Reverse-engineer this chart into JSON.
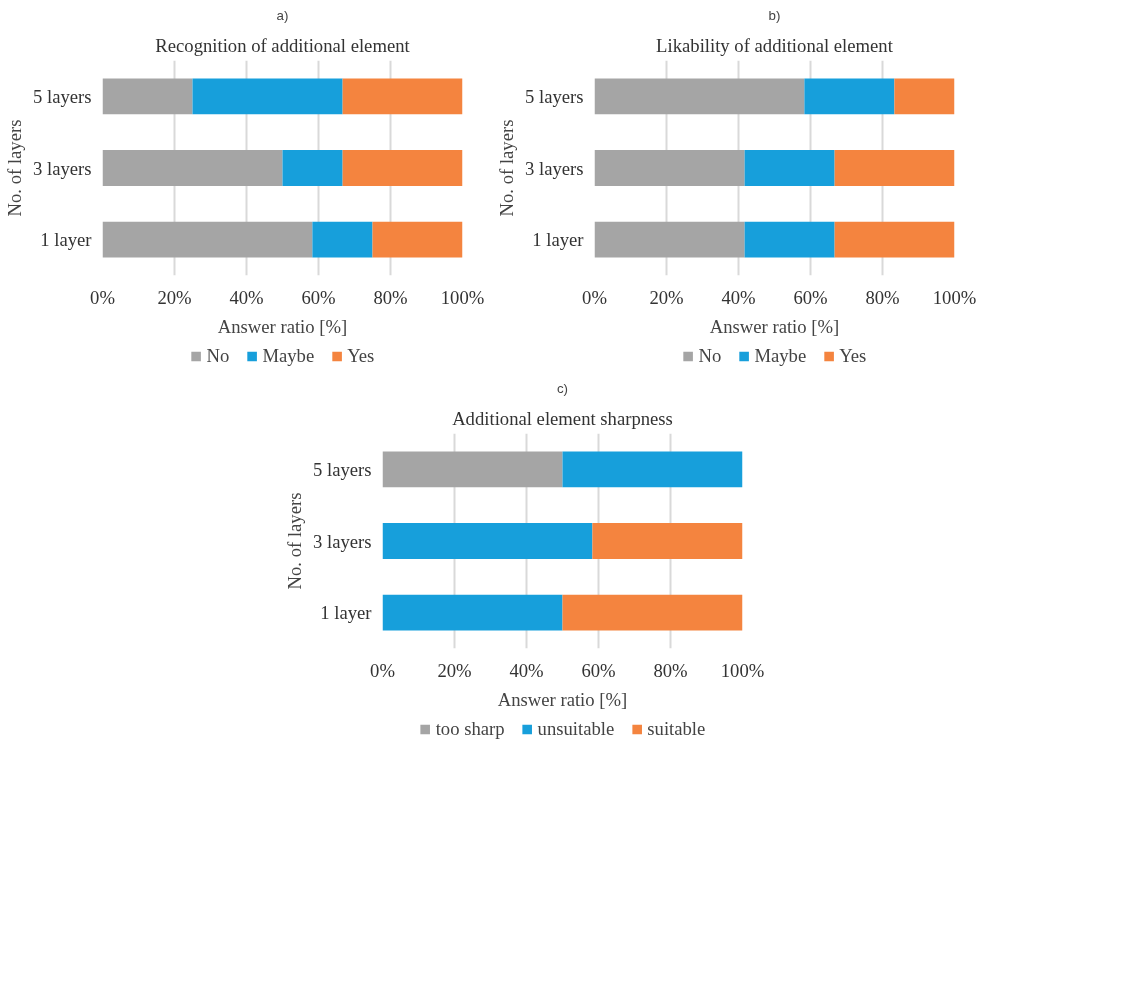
{
  "chart_data": [
    {
      "type": "bar",
      "orientation": "horizontal",
      "stacked": true,
      "title": "Recognition of additional element",
      "annotations": [
        "a)"
      ],
      "xlabel": "Answer ratio [%]",
      "ylabel": "No. of layers",
      "categories": [
        "5 layers",
        "3 layers",
        "1 layer"
      ],
      "series": [
        {
          "name": "No",
          "color": "#a5a5a5",
          "values": [
            25,
            50,
            58.3
          ]
        },
        {
          "name": "Maybe",
          "color": "#179fdb",
          "values": [
            41.7,
            16.7,
            16.7
          ]
        },
        {
          "name": "Yes",
          "color": "#f4843f",
          "values": [
            33.3,
            33.3,
            25
          ]
        }
      ],
      "xlim": [
        0,
        100
      ],
      "xticks": [
        {
          "value": 0,
          "label": "0%"
        },
        {
          "value": 20,
          "label": "20%"
        },
        {
          "value": 40,
          "label": "40%"
        },
        {
          "value": 60,
          "label": "60%"
        },
        {
          "value": 80,
          "label": "80%"
        },
        {
          "value": 100,
          "label": "100%"
        }
      ],
      "grid": "x",
      "legend": "bottom"
    },
    {
      "type": "bar",
      "orientation": "horizontal",
      "stacked": true,
      "title": "Likability of additional element",
      "annotations": [
        "b)"
      ],
      "xlabel": "Answer ratio [%]",
      "ylabel": "No. of layers",
      "categories": [
        "5 layers",
        "3 layers",
        "1 layer"
      ],
      "series": [
        {
          "name": "No",
          "color": "#a5a5a5",
          "values": [
            58.3,
            41.7,
            41.7
          ]
        },
        {
          "name": "Maybe",
          "color": "#179fdb",
          "values": [
            25,
            25,
            25
          ]
        },
        {
          "name": "Yes",
          "color": "#f4843f",
          "values": [
            16.7,
            33.3,
            33.3
          ]
        }
      ],
      "xlim": [
        0,
        100
      ],
      "xticks": [
        {
          "value": 0,
          "label": "0%"
        },
        {
          "value": 20,
          "label": "20%"
        },
        {
          "value": 40,
          "label": "40%"
        },
        {
          "value": 60,
          "label": "60%"
        },
        {
          "value": 80,
          "label": "80%"
        },
        {
          "value": 100,
          "label": "100%"
        }
      ],
      "grid": "x",
      "legend": "bottom"
    },
    {
      "type": "bar",
      "orientation": "horizontal",
      "stacked": true,
      "title": "Additional element sharpness",
      "annotations": [
        "c)"
      ],
      "xlabel": "Answer ratio [%]",
      "ylabel": "No. of layers",
      "categories": [
        "5 layers",
        "3 layers",
        "1 layer"
      ],
      "series": [
        {
          "name": "too sharp",
          "color": "#a5a5a5",
          "values": [
            50,
            0,
            0
          ]
        },
        {
          "name": "unsuitable",
          "color": "#179fdb",
          "values": [
            50,
            58.3,
            50
          ]
        },
        {
          "name": "suitable",
          "color": "#f4843f",
          "values": [
            0,
            41.7,
            50
          ]
        }
      ],
      "xlim": [
        0,
        100
      ],
      "xticks": [
        {
          "value": 0,
          "label": "0%"
        },
        {
          "value": 20,
          "label": "20%"
        },
        {
          "value": 40,
          "label": "40%"
        },
        {
          "value": 60,
          "label": "60%"
        },
        {
          "value": 80,
          "label": "80%"
        },
        {
          "value": 100,
          "label": "100%"
        }
      ],
      "grid": "x",
      "legend": "bottom"
    }
  ]
}
